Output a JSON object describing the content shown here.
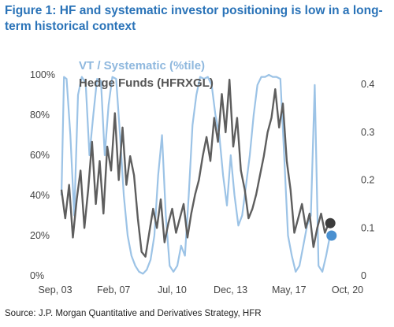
{
  "title": "Figure 1: HF and systematic investor positioning is low in a long-term historical context",
  "source": "Source: J.P. Morgan Quantitative and Derivatives Strategy, HFR",
  "chart_data": {
    "type": "line",
    "legend_placement": "top-left",
    "grid": false,
    "x_ticks": [
      "Sep, 03",
      "Feb, 07",
      "Jul, 10",
      "Dec, 13",
      "May, 17",
      "Oct, 20"
    ],
    "y_left_ticks": [
      "0%",
      "20%",
      "40%",
      "60%",
      "80%",
      "100%"
    ],
    "y_right_ticks": [
      "0",
      "0.1",
      "0.2",
      "0.3",
      "0.4"
    ],
    "y_left_range": [
      0,
      100
    ],
    "y_right_range": [
      0,
      0.42
    ],
    "x_range": [
      "2003-09",
      "2021-06"
    ],
    "series": [
      {
        "name": "VT / Systematic (%tile)",
        "axis": "left",
        "color": "#9cc3e6",
        "x": [
          "2003-09",
          "2003-11",
          "2004-01",
          "2004-04",
          "2004-07",
          "2004-10",
          "2005-01",
          "2005-04",
          "2005-07",
          "2005-10",
          "2006-01",
          "2006-04",
          "2006-07",
          "2006-10",
          "2007-01",
          "2007-04",
          "2007-07",
          "2007-10",
          "2008-01",
          "2008-04",
          "2008-07",
          "2008-10",
          "2009-01",
          "2009-04",
          "2009-07",
          "2009-10",
          "2010-01",
          "2010-04",
          "2010-07",
          "2010-10",
          "2011-01",
          "2011-04",
          "2011-07",
          "2011-10",
          "2012-01",
          "2012-04",
          "2012-07",
          "2012-10",
          "2013-01",
          "2013-04",
          "2013-07",
          "2013-10",
          "2014-01",
          "2014-04",
          "2014-07",
          "2014-10",
          "2015-01",
          "2015-04",
          "2015-07",
          "2015-10",
          "2016-01",
          "2016-04",
          "2016-07",
          "2016-10",
          "2017-01",
          "2017-04",
          "2017-07",
          "2017-10",
          "2018-01",
          "2018-04",
          "2018-07",
          "2018-10",
          "2019-01",
          "2019-04",
          "2019-07",
          "2019-10",
          "2020-01",
          "2020-04",
          "2020-07",
          "2020-10",
          "2021-01",
          "2021-04"
        ],
        "values": [
          40,
          99,
          98,
          70,
          30,
          90,
          99,
          96,
          60,
          80,
          98,
          97,
          60,
          85,
          99,
          98,
          70,
          40,
          20,
          10,
          5,
          2,
          1,
          3,
          8,
          20,
          50,
          70,
          30,
          5,
          2,
          5,
          15,
          10,
          40,
          75,
          90,
          99,
          98,
          99,
          95,
          80,
          70,
          50,
          35,
          60,
          40,
          25,
          30,
          45,
          60,
          80,
          95,
          99,
          99,
          100,
          99,
          99,
          98,
          60,
          20,
          10,
          2,
          5,
          15,
          25,
          30,
          95,
          5,
          2,
          10,
          20
        ]
      },
      {
        "name": "Hedge Funds (HFRXGL)",
        "axis": "right",
        "color": "#5e5e5e",
        "x": [
          "2003-09",
          "2003-12",
          "2004-03",
          "2004-06",
          "2004-09",
          "2004-12",
          "2005-03",
          "2005-06",
          "2005-09",
          "2005-12",
          "2006-03",
          "2006-06",
          "2006-09",
          "2006-12",
          "2007-03",
          "2007-06",
          "2007-09",
          "2007-12",
          "2008-03",
          "2008-06",
          "2008-09",
          "2008-12",
          "2009-03",
          "2009-06",
          "2009-09",
          "2009-12",
          "2010-03",
          "2010-06",
          "2010-09",
          "2010-12",
          "2011-03",
          "2011-06",
          "2011-09",
          "2011-12",
          "2012-03",
          "2012-06",
          "2012-09",
          "2012-12",
          "2013-03",
          "2013-06",
          "2013-09",
          "2013-12",
          "2014-03",
          "2014-06",
          "2014-09",
          "2014-12",
          "2015-03",
          "2015-06",
          "2015-09",
          "2015-12",
          "2016-03",
          "2016-06",
          "2016-09",
          "2016-12",
          "2017-03",
          "2017-06",
          "2017-09",
          "2017-12",
          "2018-03",
          "2018-06",
          "2018-09",
          "2018-12",
          "2019-03",
          "2019-06",
          "2019-09",
          "2019-12",
          "2020-03",
          "2020-06",
          "2020-09",
          "2020-12",
          "2021-03"
        ],
        "values": [
          0.18,
          0.12,
          0.19,
          0.08,
          0.16,
          0.22,
          0.1,
          0.18,
          0.28,
          0.15,
          0.24,
          0.13,
          0.27,
          0.22,
          0.34,
          0.2,
          0.31,
          0.19,
          0.25,
          0.21,
          0.12,
          0.05,
          0.04,
          0.09,
          0.14,
          0.1,
          0.16,
          0.07,
          0.11,
          0.14,
          0.09,
          0.12,
          0.15,
          0.08,
          0.13,
          0.17,
          0.2,
          0.25,
          0.29,
          0.24,
          0.33,
          0.28,
          0.38,
          0.3,
          0.41,
          0.27,
          0.33,
          0.22,
          0.18,
          0.12,
          0.14,
          0.17,
          0.21,
          0.25,
          0.3,
          0.33,
          0.39,
          0.31,
          0.36,
          0.24,
          0.18,
          0.09,
          0.12,
          0.15,
          0.1,
          0.13,
          0.06,
          0.1,
          0.13,
          0.09,
          0.11
        ]
      }
    ]
  }
}
